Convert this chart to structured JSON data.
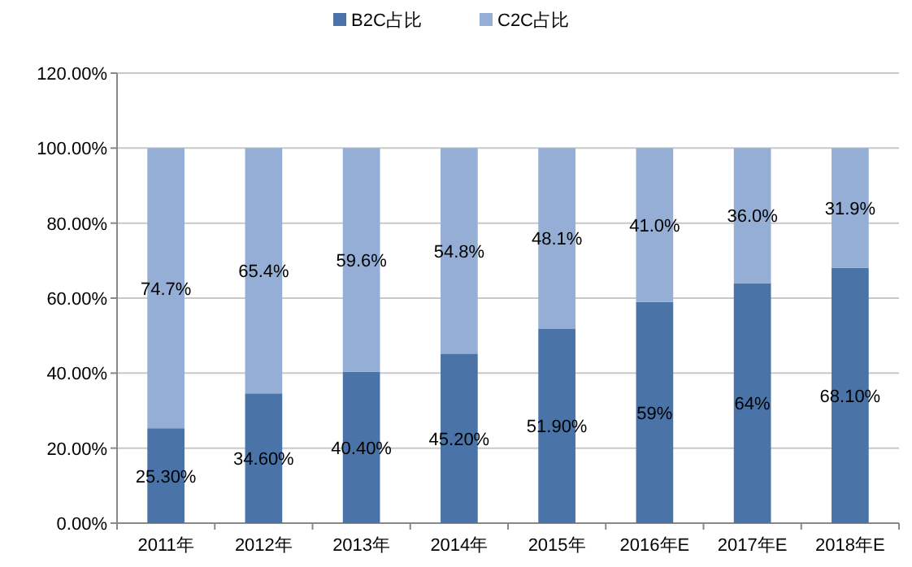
{
  "chart_data": {
    "type": "bar",
    "stacked": true,
    "categories": [
      "2011年",
      "2012年",
      "2013年",
      "2014年",
      "2015年",
      "2016年E",
      "2017年E",
      "2018年E"
    ],
    "series": [
      {
        "name": "B2C占比",
        "color": "#4a74a8",
        "values": [
          25.3,
          34.6,
          40.4,
          45.2,
          51.9,
          59,
          64,
          68.1
        ],
        "value_labels": [
          "25.30%",
          "34.60%",
          "40.40%",
          "45.20%",
          "51.90%",
          "59%",
          "64%",
          "68.10%"
        ]
      },
      {
        "name": "C2C占比",
        "color": "#95aed5",
        "values": [
          74.7,
          65.4,
          59.6,
          54.8,
          48.1,
          41,
          36,
          31.9
        ],
        "value_labels": [
          "74.7%",
          "65.4%",
          "59.6%",
          "54.8%",
          "48.1%",
          "41.0%",
          "36.0%",
          "31.9%"
        ]
      }
    ],
    "ylim": [
      0,
      120
    ],
    "yticks": [
      {
        "value": 0,
        "label": "0.00%"
      },
      {
        "value": 20,
        "label": "20.00%"
      },
      {
        "value": 40,
        "label": "40.00%"
      },
      {
        "value": 60,
        "label": "60.00%"
      },
      {
        "value": 80,
        "label": "80.00%"
      },
      {
        "value": 100,
        "label": "100.00%"
      },
      {
        "value": 120,
        "label": "120.00%"
      }
    ],
    "grid": "y",
    "legend": "top"
  }
}
